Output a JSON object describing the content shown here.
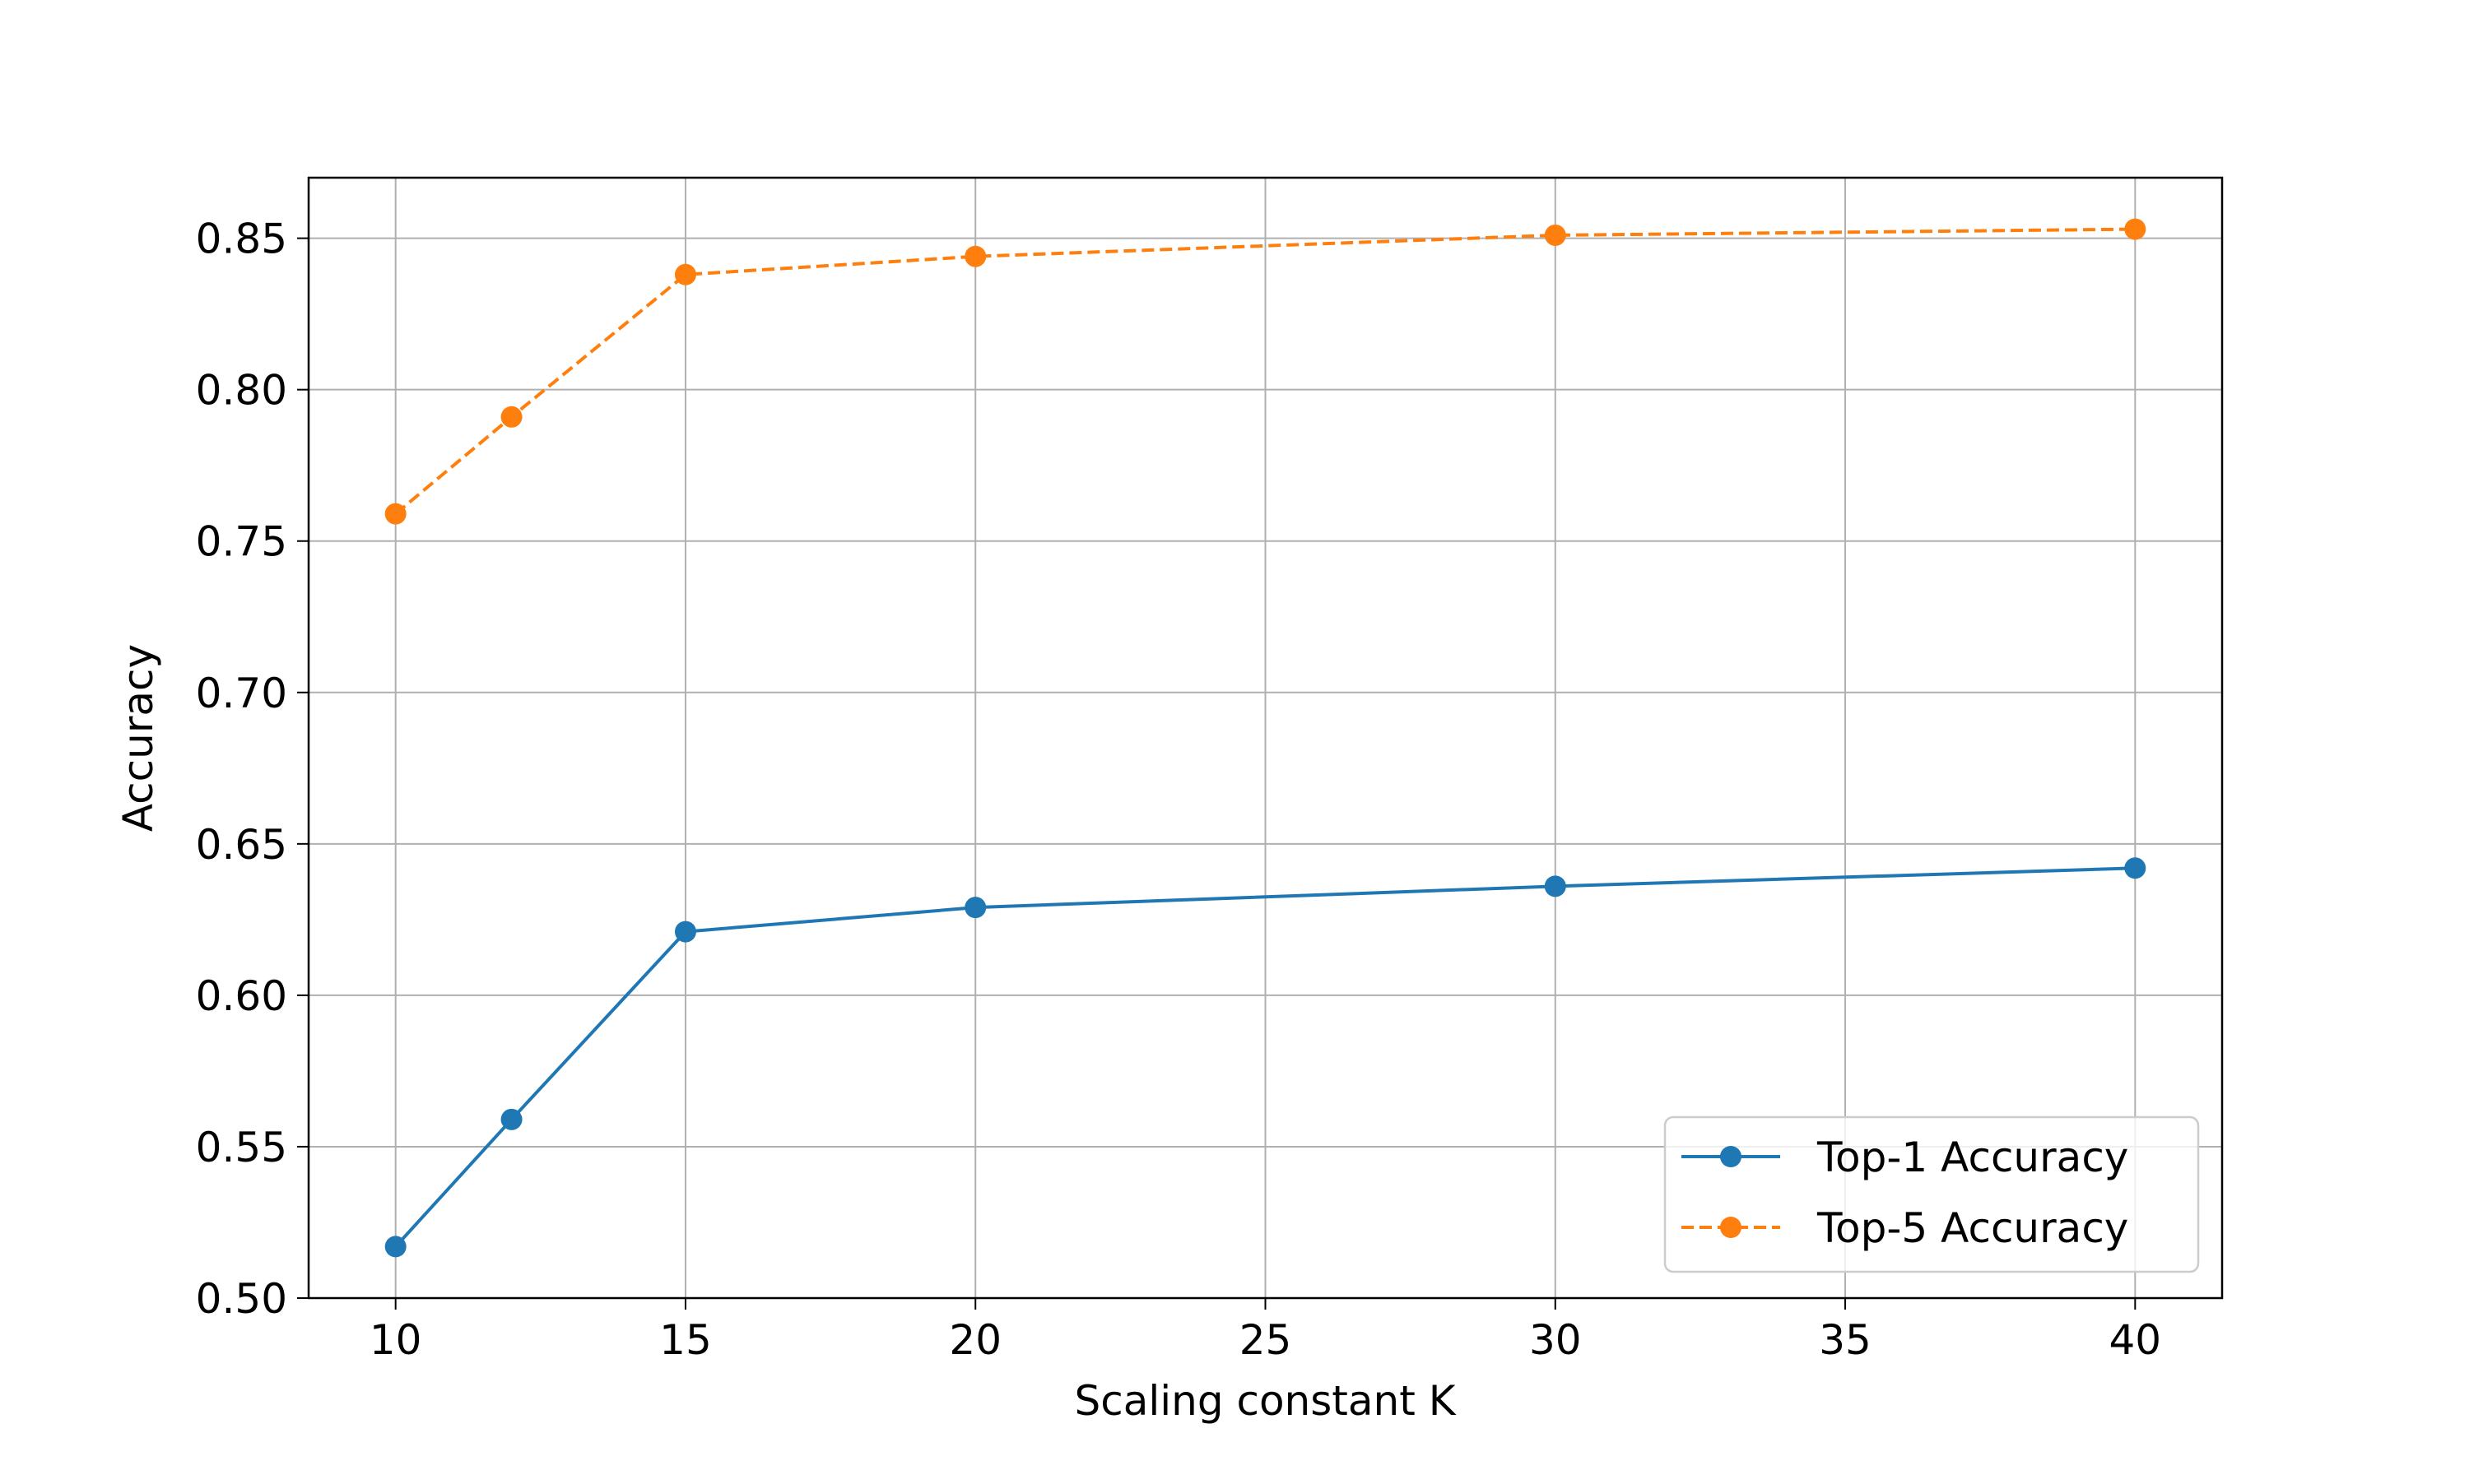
{
  "chart_data": {
    "type": "line",
    "xlabel": "Scaling constant K",
    "ylabel": "Accuracy",
    "x": [
      10,
      12,
      15,
      20,
      30,
      40
    ],
    "xlim": [
      8.5,
      41.5
    ],
    "ylim": [
      0.5,
      0.87
    ],
    "xticks": [
      10,
      15,
      20,
      25,
      30,
      35,
      40
    ],
    "yticks": [
      0.5,
      0.55,
      0.6,
      0.65,
      0.7,
      0.75,
      0.8,
      0.85
    ],
    "xtick_labels": [
      "10",
      "15",
      "20",
      "25",
      "30",
      "35",
      "40"
    ],
    "ytick_labels": [
      "0.50",
      "0.55",
      "0.60",
      "0.65",
      "0.70",
      "0.75",
      "0.80",
      "0.85"
    ],
    "grid": true,
    "legend_position": "lower-right",
    "series": [
      {
        "name": "Top-1 Accuracy",
        "values": [
          0.517,
          0.559,
          0.621,
          0.629,
          0.636,
          0.642
        ],
        "color": "#1f77b4",
        "line_style": "solid",
        "marker": "circle"
      },
      {
        "name": "Top-5 Accuracy",
        "values": [
          0.759,
          0.791,
          0.838,
          0.844,
          0.851,
          0.853
        ],
        "color": "#ff7f0e",
        "line_style": "dashed",
        "marker": "circle"
      }
    ]
  }
}
